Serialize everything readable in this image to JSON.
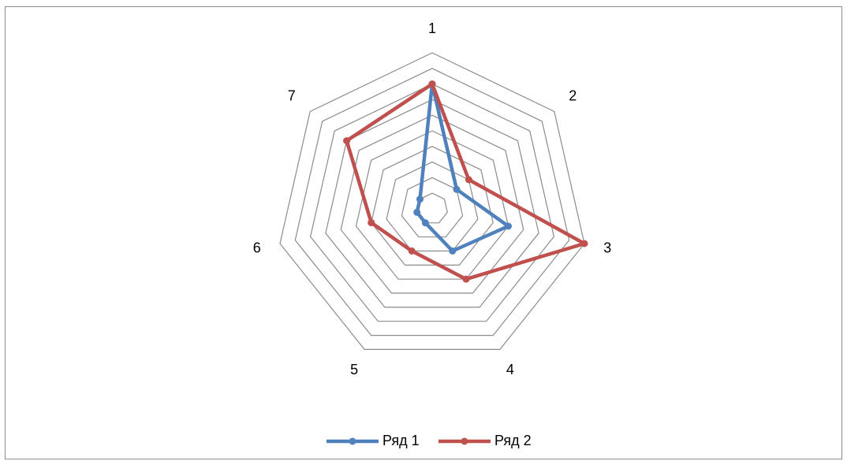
{
  "chart_data": {
    "type": "radar",
    "categories": [
      "1",
      "2",
      "3",
      "4",
      "5",
      "6",
      "7"
    ],
    "levels": 10,
    "grid": true,
    "grid_color": "#8c8c8c",
    "legend_position": "bottom",
    "series": [
      {
        "name": "Ряд 1",
        "color": "#4f81bd",
        "values": [
          8,
          2,
          5,
          3,
          1,
          1,
          1
        ]
      },
      {
        "name": "Ряд 2",
        "color": "#c0504d",
        "values": [
          8,
          3,
          10,
          5,
          3,
          4,
          7
        ]
      }
    ]
  }
}
